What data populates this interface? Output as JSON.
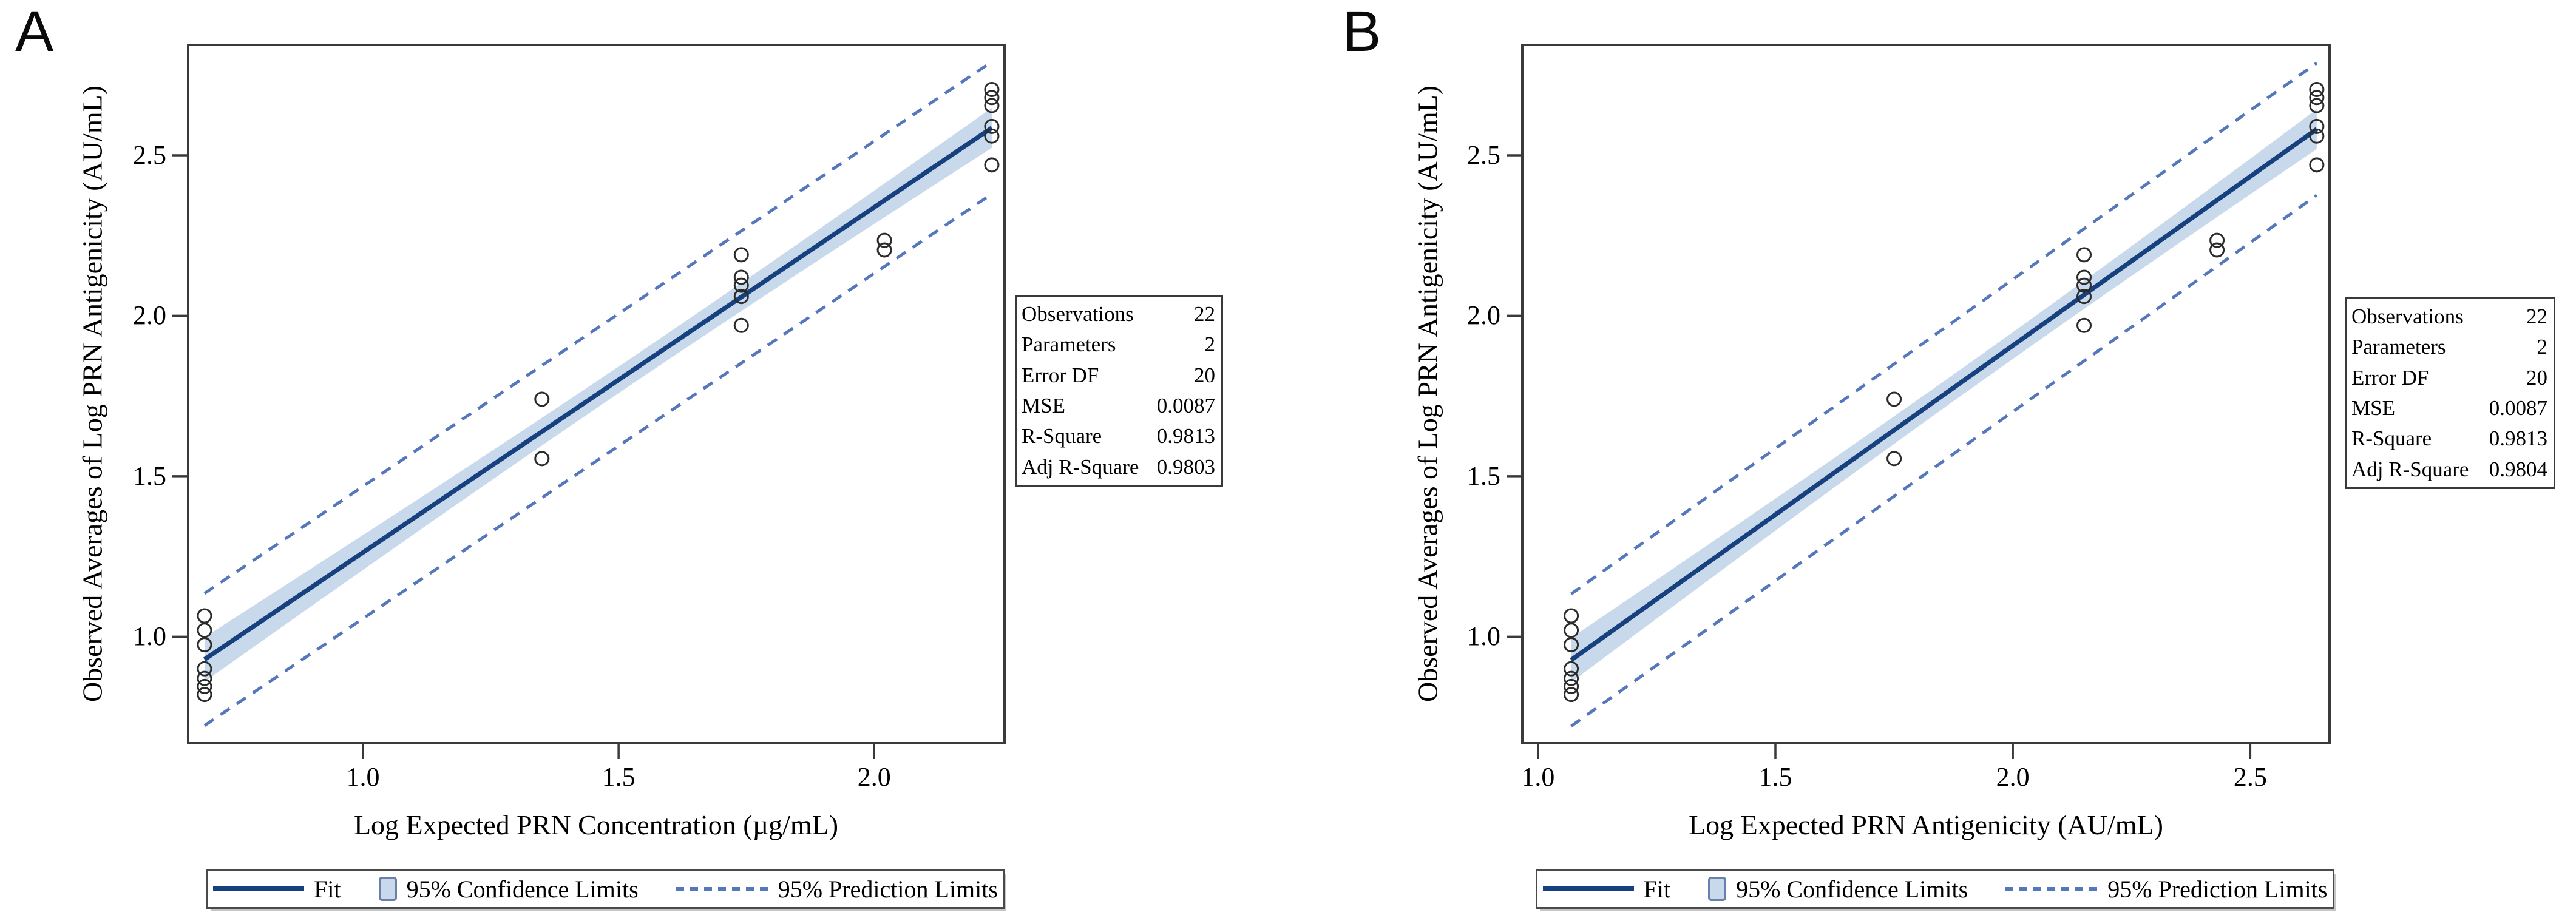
{
  "colors": {
    "fit_line": "#17407f",
    "confidence_band": "#c9d9ec",
    "prediction_line": "#5577bb",
    "marker_outline": "#2b2b2b",
    "frame": "#3a3a3a"
  },
  "legend": {
    "position": "bottom",
    "items": [
      {
        "label": "Fit",
        "sample": "solid-line"
      },
      {
        "label": "95% Confidence Limits",
        "sample": "shaded-band-swatch"
      },
      {
        "label": "95% Prediction Limits",
        "sample": "dashed-line"
      }
    ]
  },
  "chart_data": [
    {
      "type": "scatter",
      "panel_label": "A",
      "xlabel": "Log Expected PRN Concentration (µg/mL)",
      "ylabel": "Observed Averages of Log PRN Antigenicity (AU/mL)",
      "xlim": [
        0.658,
        2.255
      ],
      "ylim": [
        0.668,
        2.844
      ],
      "grid": false,
      "xticks": [
        {
          "value": 1.0,
          "label": "1.0"
        },
        {
          "value": 1.5,
          "label": "1.5"
        },
        {
          "value": 2.0,
          "label": "2.0"
        }
      ],
      "yticks": [
        {
          "value": 1.0,
          "label": "1.0"
        },
        {
          "value": 1.5,
          "label": "1.5"
        },
        {
          "value": 2.0,
          "label": "2.0"
        },
        {
          "value": 2.5,
          "label": "2.5"
        }
      ],
      "points": [
        [
          0.69,
          1.065
        ],
        [
          0.69,
          1.02
        ],
        [
          0.69,
          0.975
        ],
        [
          0.69,
          0.9
        ],
        [
          0.69,
          0.87
        ],
        [
          0.69,
          0.845
        ],
        [
          0.69,
          0.82
        ],
        [
          1.35,
          1.74
        ],
        [
          1.35,
          1.555
        ],
        [
          1.74,
          2.19
        ],
        [
          1.74,
          2.12
        ],
        [
          1.74,
          2.095
        ],
        [
          1.74,
          2.06
        ],
        [
          1.74,
          1.97
        ],
        [
          2.02,
          2.235
        ],
        [
          2.02,
          2.205
        ],
        [
          2.23,
          2.705
        ],
        [
          2.23,
          2.68
        ],
        [
          2.23,
          2.655
        ],
        [
          2.23,
          2.59
        ],
        [
          2.23,
          2.56
        ],
        [
          2.23,
          2.47
        ]
      ],
      "fit": {
        "slope": 1.0755,
        "intercept": 0.187,
        "x_start": 0.69,
        "x_end": 2.23
      },
      "confidence": {
        "t_sqrt_mse": 0.1946,
        "n": 22,
        "x_mean": 1.5295,
        "sxx": 8.645
      },
      "prediction_halfwidth": 0.206,
      "stats_table": {
        "rows": [
          {
            "label": "Observations",
            "value": "22"
          },
          {
            "label": "Parameters",
            "value": "2"
          },
          {
            "label": "Error DF",
            "value": "20"
          },
          {
            "label": "MSE",
            "value": "0.0087"
          },
          {
            "label": "R-Square",
            "value": "0.9813"
          },
          {
            "label": "Adj R-Square",
            "value": "0.9803"
          }
        ]
      }
    },
    {
      "type": "scatter",
      "panel_label": "B",
      "xlabel": "Log Expected PRN Antigenicity (AU/mL)",
      "ylabel": "Observed Averages of Log PRN Antigenicity (AU/mL)",
      "xlim": [
        0.967,
        2.667
      ],
      "ylim": [
        0.668,
        2.844
      ],
      "grid": false,
      "xticks": [
        {
          "value": 1.0,
          "label": "1.0"
        },
        {
          "value": 1.5,
          "label": "1.5"
        },
        {
          "value": 2.0,
          "label": "2.0"
        },
        {
          "value": 2.5,
          "label": "2.5"
        }
      ],
      "yticks": [
        {
          "value": 1.0,
          "label": "1.0"
        },
        {
          "value": 1.5,
          "label": "1.5"
        },
        {
          "value": 2.0,
          "label": "2.0"
        },
        {
          "value": 2.5,
          "label": "2.5"
        }
      ],
      "points": [
        [
          1.07,
          1.065
        ],
        [
          1.07,
          1.02
        ],
        [
          1.07,
          0.975
        ],
        [
          1.07,
          0.9
        ],
        [
          1.07,
          0.87
        ],
        [
          1.07,
          0.845
        ],
        [
          1.07,
          0.82
        ],
        [
          1.75,
          1.74
        ],
        [
          1.75,
          1.555
        ],
        [
          2.15,
          2.19
        ],
        [
          2.15,
          2.12
        ],
        [
          2.15,
          2.095
        ],
        [
          2.15,
          2.06
        ],
        [
          2.15,
          1.97
        ],
        [
          2.43,
          2.235
        ],
        [
          2.43,
          2.205
        ],
        [
          2.64,
          2.705
        ],
        [
          2.64,
          2.68
        ],
        [
          2.64,
          2.655
        ],
        [
          2.64,
          2.59
        ],
        [
          2.64,
          2.56
        ],
        [
          2.64,
          2.47
        ]
      ],
      "fit": {
        "slope": 1.0536,
        "intercept": -0.2,
        "x_start": 1.07,
        "x_end": 2.64
      },
      "confidence": {
        "t_sqrt_mse": 0.1946,
        "n": 22,
        "x_mean": 1.929,
        "sxx": 9.009
      },
      "prediction_halfwidth": 0.206,
      "stats_table": {
        "rows": [
          {
            "label": "Observations",
            "value": "22"
          },
          {
            "label": "Parameters",
            "value": "2"
          },
          {
            "label": "Error DF",
            "value": "20"
          },
          {
            "label": "MSE",
            "value": "0.0087"
          },
          {
            "label": "R-Square",
            "value": "0.9813"
          },
          {
            "label": "Adj R-Square",
            "value": "0.9804"
          }
        ]
      }
    }
  ]
}
